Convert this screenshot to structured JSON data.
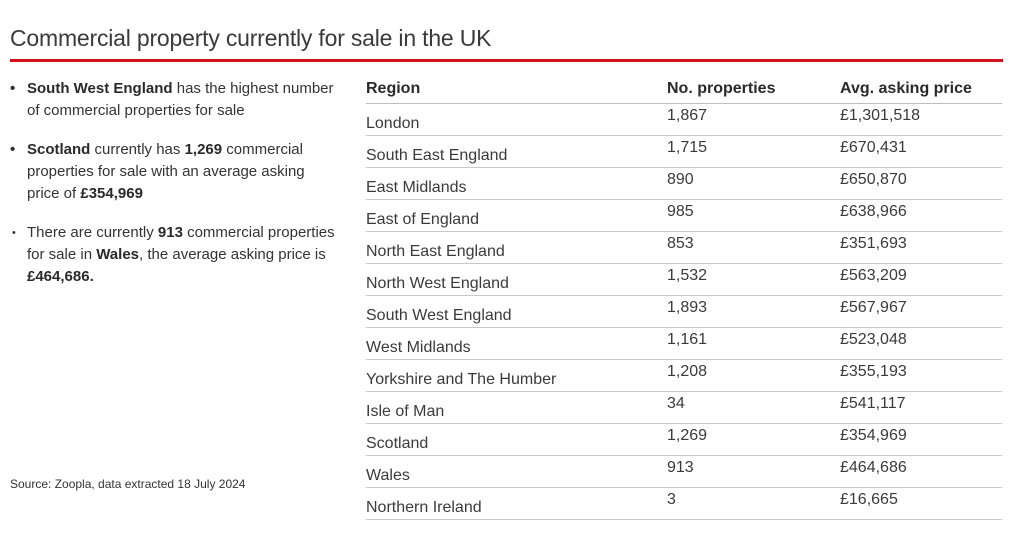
{
  "title": "Commercial property currently for sale in the UK",
  "bullets": [
    {
      "bullet": "•",
      "b1": "South West England",
      "t1": " has the highest number of commercial properties for sale"
    },
    {
      "bullet": "•",
      "b1": "Scotland",
      "t1": " currently has ",
      "b2": "1,269",
      "t2": " commercial properties for sale with an average asking price of ",
      "b3": "£354,969"
    },
    {
      "bullet": "•",
      "t1": "There are currently ",
      "b1": "913",
      "t2": " commercial properties for sale in ",
      "b2": "Wales",
      "t3": ", the average asking price is ",
      "b3": "£464,686."
    }
  ],
  "source": "Source: Zoopla, data extracted 18 July 2024",
  "table": {
    "headers": [
      "Region",
      "No. properties",
      "Avg. asking price"
    ],
    "rows": [
      [
        "London",
        "1,867",
        "£1,301,518"
      ],
      [
        "South East England",
        "1,715",
        "£670,431"
      ],
      [
        "East Midlands",
        "890",
        "£650,870"
      ],
      [
        "East of England",
        "985",
        "£638,966"
      ],
      [
        "North East England",
        "853",
        "£351,693"
      ],
      [
        "North West England",
        "1,532",
        "£563,209"
      ],
      [
        "South West England",
        "1,893",
        "£567,967"
      ],
      [
        "West Midlands",
        "1,161",
        "£523,048"
      ],
      [
        "Yorkshire and The Humber",
        "1,208",
        "£355,193"
      ],
      [
        "Isle of Man",
        "34",
        "£541,117"
      ],
      [
        "Scotland",
        "1,269",
        "£354,969"
      ],
      [
        "Wales",
        "913",
        "£464,686"
      ],
      [
        "Northern Ireland",
        "3",
        "£16,665"
      ]
    ]
  },
  "colors": {
    "accent": "#d4121d"
  }
}
